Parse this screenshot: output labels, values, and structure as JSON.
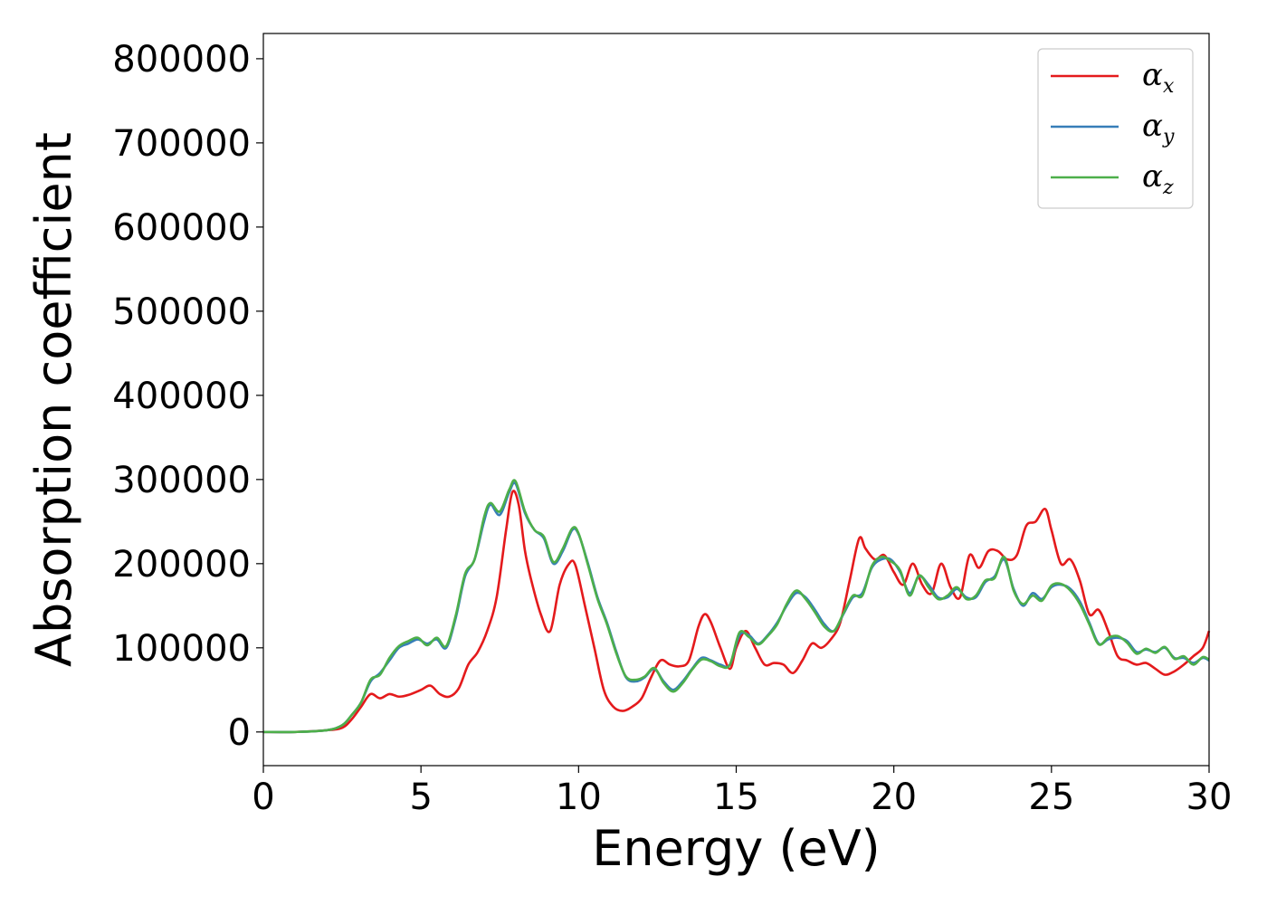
{
  "chart_data": {
    "type": "line",
    "xlabel": "Energy (eV)",
    "ylabel": "Absorption coefficient",
    "xlim": [
      0,
      30
    ],
    "ylim": [
      -40000,
      830000
    ],
    "xticks": [
      0,
      5,
      10,
      15,
      20,
      25,
      30
    ],
    "yticks": [
      0,
      100000,
      200000,
      300000,
      400000,
      500000,
      600000,
      700000,
      800000
    ],
    "xtick_labels": [
      "0",
      "5",
      "10",
      "15",
      "20",
      "25",
      "30"
    ],
    "ytick_labels": [
      "0",
      "100000",
      "200000",
      "300000",
      "400000",
      "500000",
      "600000",
      "700000",
      "800000"
    ],
    "grid": false,
    "legend_position": "top-right",
    "series": [
      {
        "name": "α",
        "subscript": "x",
        "color": "#e41a1c",
        "x": [
          0,
          1,
          2,
          2.5,
          2.8,
          3.1,
          3.4,
          3.7,
          4,
          4.3,
          4.6,
          5,
          5.3,
          5.6,
          5.9,
          6.2,
          6.5,
          6.8,
          7.1,
          7.4,
          7.7,
          7.9,
          8.1,
          8.3,
          8.5,
          8.8,
          9.1,
          9.4,
          9.7,
          9.9,
          10.2,
          10.5,
          10.8,
          11.1,
          11.4,
          11.7,
          12,
          12.3,
          12.6,
          12.9,
          13.2,
          13.5,
          13.8,
          14.0,
          14.2,
          14.5,
          14.8,
          15.0,
          15.3,
          15.6,
          15.9,
          16.2,
          16.5,
          16.8,
          17.1,
          17.4,
          17.7,
          18.0,
          18.3,
          18.6,
          18.9,
          19.1,
          19.4,
          19.7,
          20.0,
          20.3,
          20.6,
          20.9,
          21.2,
          21.5,
          21.8,
          22.1,
          22.4,
          22.7,
          23.0,
          23.3,
          23.6,
          23.9,
          24.2,
          24.5,
          24.8,
          25.0,
          25.3,
          25.6,
          25.9,
          26.2,
          26.5,
          26.8,
          27.1,
          27.4,
          27.7,
          28.0,
          28.3,
          28.6,
          28.9,
          29.2,
          29.5,
          29.8,
          30
        ],
        "y": [
          0,
          0,
          2000,
          5000,
          15000,
          30000,
          45000,
          40000,
          45000,
          42000,
          44000,
          50000,
          55000,
          45000,
          42000,
          52000,
          80000,
          95000,
          120000,
          160000,
          240000,
          285000,
          270000,
          215000,
          180000,
          140000,
          120000,
          175000,
          200000,
          198000,
          150000,
          100000,
          50000,
          30000,
          25000,
          30000,
          40000,
          65000,
          85000,
          80000,
          78000,
          85000,
          125000,
          140000,
          130000,
          100000,
          75000,
          100000,
          120000,
          100000,
          80000,
          82000,
          80000,
          70000,
          85000,
          105000,
          100000,
          110000,
          130000,
          180000,
          230000,
          218000,
          205000,
          210000,
          190000,
          175000,
          200000,
          175000,
          165000,
          200000,
          172000,
          160000,
          210000,
          195000,
          215000,
          215000,
          205000,
          210000,
          245000,
          250000,
          265000,
          240000,
          200000,
          205000,
          180000,
          140000,
          145000,
          120000,
          90000,
          85000,
          80000,
          82000,
          75000,
          68000,
          72000,
          80000,
          90000,
          100000,
          120000
        ]
      },
      {
        "name": "α",
        "subscript": "y",
        "color": "#377eb8",
        "x": [
          0,
          1,
          2,
          2.5,
          2.8,
          3.1,
          3.4,
          3.7,
          4,
          4.3,
          4.6,
          4.9,
          5.2,
          5.5,
          5.8,
          6.1,
          6.4,
          6.7,
          7.0,
          7.2,
          7.5,
          7.8,
          8.0,
          8.3,
          8.6,
          8.9,
          9.2,
          9.5,
          9.8,
          10.0,
          10.3,
          10.6,
          10.9,
          11.2,
          11.5,
          11.8,
          12.1,
          12.4,
          12.7,
          13.0,
          13.3,
          13.6,
          13.9,
          14.2,
          14.5,
          14.8,
          15.1,
          15.4,
          15.7,
          16.0,
          16.3,
          16.6,
          16.9,
          17.2,
          17.5,
          17.8,
          18.1,
          18.4,
          18.7,
          19.0,
          19.3,
          19.6,
          19.9,
          20.2,
          20.5,
          20.8,
          21.1,
          21.4,
          21.7,
          22.0,
          22.3,
          22.6,
          22.9,
          23.2,
          23.5,
          23.8,
          24.1,
          24.4,
          24.7,
          25.0,
          25.3,
          25.6,
          25.9,
          26.2,
          26.5,
          26.8,
          27.1,
          27.4,
          27.7,
          28.0,
          28.3,
          28.6,
          28.9,
          29.2,
          29.5,
          29.8,
          30
        ],
        "y": [
          0,
          0,
          2000,
          8000,
          20000,
          35000,
          60000,
          70000,
          85000,
          100000,
          105000,
          110000,
          105000,
          110000,
          100000,
          135000,
          185000,
          205000,
          250000,
          270000,
          258000,
          285000,
          295000,
          260000,
          240000,
          230000,
          200000,
          215000,
          240000,
          235000,
          200000,
          160000,
          130000,
          95000,
          65000,
          60000,
          65000,
          75000,
          60000,
          50000,
          60000,
          75000,
          88000,
          85000,
          80000,
          80000,
          115000,
          115000,
          105000,
          115000,
          130000,
          150000,
          165000,
          160000,
          145000,
          128000,
          120000,
          140000,
          160000,
          165000,
          195000,
          205000,
          205000,
          190000,
          165000,
          185000,
          175000,
          160000,
          160000,
          170000,
          160000,
          160000,
          178000,
          185000,
          205000,
          170000,
          150000,
          165000,
          158000,
          172000,
          175000,
          170000,
          155000,
          130000,
          105000,
          110000,
          112000,
          108000,
          95000,
          98000,
          95000,
          100000,
          88000,
          88000,
          82000,
          88000,
          85000
        ]
      },
      {
        "name": "α",
        "subscript": "z",
        "color": "#4daf4a",
        "x": [
          0,
          1,
          2,
          2.5,
          2.8,
          3.1,
          3.4,
          3.7,
          4,
          4.3,
          4.6,
          4.9,
          5.2,
          5.5,
          5.8,
          6.1,
          6.4,
          6.7,
          7.0,
          7.2,
          7.5,
          7.8,
          8.0,
          8.3,
          8.6,
          8.9,
          9.2,
          9.5,
          9.8,
          10.0,
          10.3,
          10.6,
          10.9,
          11.2,
          11.5,
          11.8,
          12.1,
          12.4,
          12.7,
          13.0,
          13.3,
          13.6,
          13.9,
          14.2,
          14.5,
          14.8,
          15.1,
          15.4,
          15.7,
          16.0,
          16.3,
          16.6,
          16.9,
          17.2,
          17.5,
          17.8,
          18.1,
          18.4,
          18.7,
          19.0,
          19.3,
          19.6,
          19.9,
          20.2,
          20.5,
          20.8,
          21.1,
          21.4,
          21.7,
          22.0,
          22.3,
          22.6,
          22.9,
          23.2,
          23.5,
          23.8,
          24.1,
          24.4,
          24.7,
          25.0,
          25.3,
          25.6,
          25.9,
          26.2,
          26.5,
          26.8,
          27.1,
          27.4,
          27.7,
          28.0,
          28.3,
          28.6,
          28.9,
          29.2,
          29.5,
          29.8,
          30
        ],
        "y": [
          0,
          0,
          2000,
          8000,
          20000,
          35000,
          62000,
          68000,
          88000,
          102000,
          108000,
          112000,
          103000,
          112000,
          102000,
          138000,
          188000,
          205000,
          255000,
          272000,
          262000,
          288000,
          298000,
          262000,
          240000,
          232000,
          202000,
          218000,
          242000,
          236000,
          198000,
          158000,
          128000,
          93000,
          66000,
          62000,
          66000,
          76000,
          58000,
          48000,
          58000,
          74000,
          86000,
          84000,
          78000,
          80000,
          118000,
          113000,
          104000,
          114000,
          128000,
          152000,
          168000,
          158000,
          142000,
          125000,
          120000,
          141000,
          162000,
          162000,
          197000,
          208000,
          203000,
          192000,
          162000,
          186000,
          172000,
          158000,
          162000,
          172000,
          158000,
          162000,
          180000,
          183000,
          208000,
          168000,
          152000,
          162000,
          156000,
          174000,
          176000,
          168000,
          152000,
          128000,
          104000,
          112000,
          114000,
          106000,
          93000,
          99000,
          94000,
          101000,
          87000,
          90000,
          80000,
          89000,
          86000
        ]
      }
    ]
  }
}
